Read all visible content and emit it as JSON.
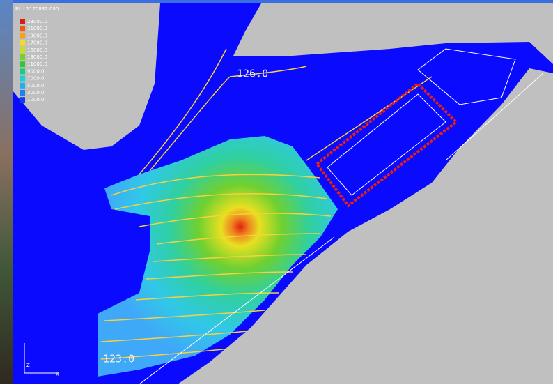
{
  "viewport": {
    "rl_label": "RL : 1170832.000",
    "legend": [
      {
        "label": "23000.0",
        "color": "#d81e10"
      },
      {
        "label": "21000.0",
        "color": "#f05a10"
      },
      {
        "label": "19000.0",
        "color": "#f8a018"
      },
      {
        "label": "17000.0",
        "color": "#f8d820"
      },
      {
        "label": "15000.0",
        "color": "#c8e020"
      },
      {
        "label": "13000.0",
        "color": "#78d028"
      },
      {
        "label": "11000.0",
        "color": "#30c830"
      },
      {
        "label": "9000.0",
        "color": "#20c888"
      },
      {
        "label": "7000.0",
        "color": "#20d0d0"
      },
      {
        "label": "5000.0",
        "color": "#20b0f0"
      },
      {
        "label": "3000.0",
        "color": "#2080f0"
      },
      {
        "label": "1000.0",
        "color": "#1040e8"
      }
    ],
    "contour_labels": [
      "126.0",
      "123.0"
    ],
    "axis_labels": {
      "vertical": "Z",
      "horizontal": "X"
    }
  }
}
